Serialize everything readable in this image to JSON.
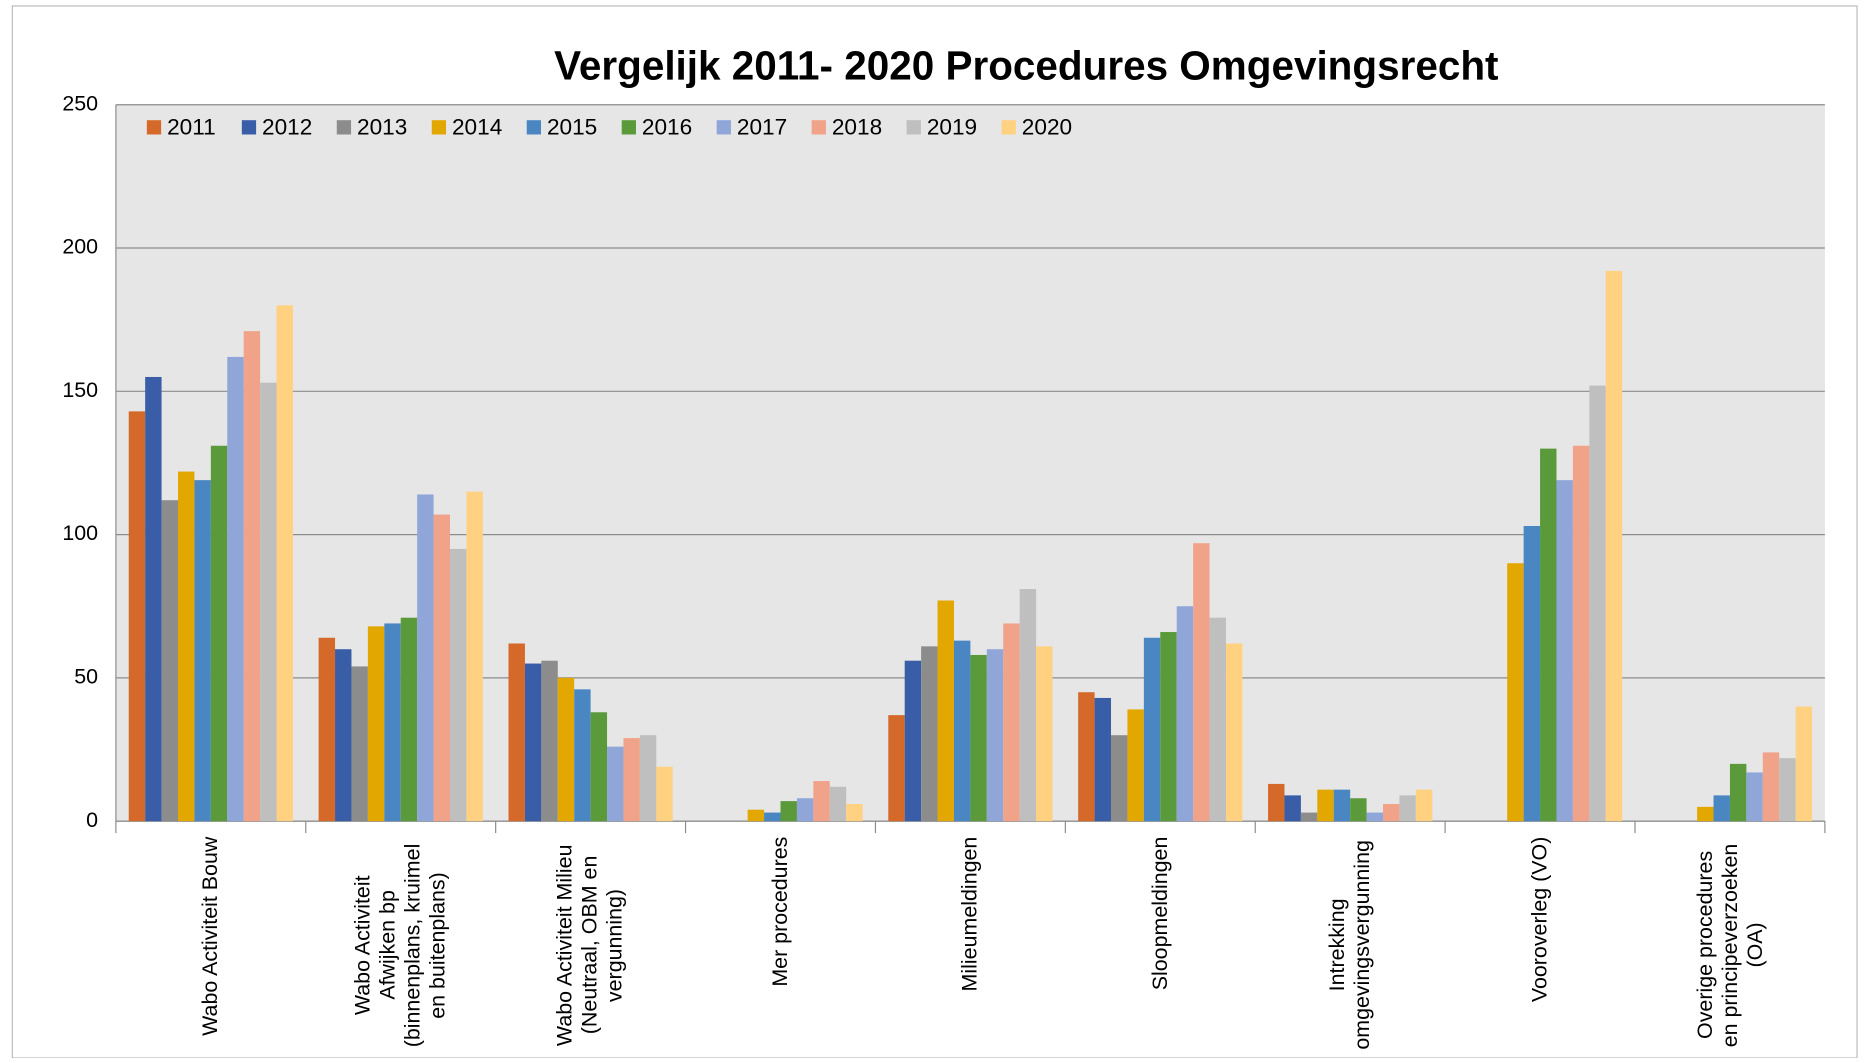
{
  "chart_data": {
    "type": "bar",
    "title": "Vergelijk 2011- 2020 Procedures Omgevingsrecht",
    "categories": [
      "Wabo Activiteit Bouw",
      "Wabo Activiteit Afwijken bp (binnenplans, kruimel en buitenplans)",
      "Wabo Activiteit Milieu (Neutraal, OBM en vergunning)",
      "Mer procedures",
      "Milieumeldingen",
      "Sloopmeldingen",
      "Intrekking omgevingsvergunning",
      "Vooroverleg (VO)",
      "Overige procedures en principeverzoeken (OA)"
    ],
    "series": [
      {
        "name": "2011",
        "color": "#d4692a",
        "values": [
          143,
          64,
          62,
          null,
          37,
          45,
          13,
          null,
          null
        ]
      },
      {
        "name": "2012",
        "color": "#3a5da8",
        "values": [
          155,
          60,
          55,
          null,
          56,
          43,
          9,
          null,
          null
        ]
      },
      {
        "name": "2013",
        "color": "#8c8c8c",
        "values": [
          112,
          54,
          56,
          null,
          61,
          30,
          3,
          null,
          null
        ]
      },
      {
        "name": "2014",
        "color": "#e2a700",
        "values": [
          122,
          68,
          50,
          4,
          77,
          39,
          11,
          90,
          5
        ]
      },
      {
        "name": "2015",
        "color": "#4a87c2",
        "values": [
          119,
          69,
          46,
          3,
          63,
          64,
          11,
          103,
          9
        ]
      },
      {
        "name": "2016",
        "color": "#5b9a3a",
        "values": [
          131,
          71,
          38,
          7,
          58,
          66,
          8,
          130,
          20
        ]
      },
      {
        "name": "2017",
        "color": "#90a6d9",
        "values": [
          162,
          114,
          26,
          8,
          60,
          75,
          3,
          119,
          17
        ]
      },
      {
        "name": "2018",
        "color": "#f1a38a",
        "values": [
          171,
          107,
          29,
          14,
          69,
          97,
          6,
          131,
          24
        ]
      },
      {
        "name": "2019",
        "color": "#bfbfbf",
        "values": [
          153,
          95,
          30,
          12,
          81,
          71,
          9,
          152,
          22
        ]
      },
      {
        "name": "2020",
        "color": "#ffd181",
        "values": [
          180,
          115,
          19,
          6,
          61,
          62,
          11,
          192,
          40
        ]
      }
    ],
    "ylim": [
      0,
      250
    ],
    "yticks": [
      0,
      50,
      100,
      150,
      200,
      250
    ],
    "grid": true,
    "legend": "top-left"
  }
}
